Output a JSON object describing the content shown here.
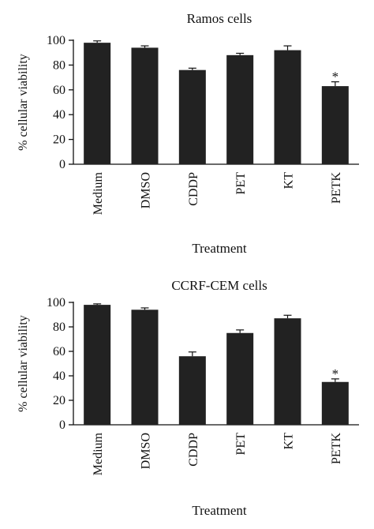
{
  "chart_data": [
    {
      "type": "bar",
      "title": "Ramos cells",
      "xlabel": "Treatment",
      "ylabel": "% cellular viability",
      "ylim": [
        0,
        100
      ],
      "yticks": [
        0,
        20,
        40,
        60,
        80,
        100
      ],
      "categories": [
        "Medium",
        "DMSO",
        "CDDP",
        "PET",
        "KT",
        "PETK"
      ],
      "values": [
        98,
        94,
        76,
        88,
        92,
        63
      ],
      "errors": [
        1.5,
        1.5,
        1.5,
        1.5,
        3.5,
        3.5
      ],
      "annotations": [
        {
          "category": "PETK",
          "text": "*"
        }
      ],
      "bar_color": "#222222",
      "grid": false
    },
    {
      "type": "bar",
      "title": "CCRF-CEM cells",
      "xlabel": "Treatment",
      "ylabel": "% cellular viability",
      "ylim": [
        0,
        100
      ],
      "yticks": [
        0,
        20,
        40,
        60,
        80,
        100
      ],
      "categories": [
        "Medium",
        "DMSO",
        "CDDP",
        "PET",
        "KT",
        "PETK"
      ],
      "values": [
        98,
        94,
        56,
        75,
        87,
        35
      ],
      "errors": [
        0.8,
        1.5,
        3.5,
        2.5,
        2.5,
        2.5
      ],
      "annotations": [
        {
          "category": "PETK",
          "text": "*"
        }
      ],
      "bar_color": "#222222",
      "grid": false
    }
  ]
}
